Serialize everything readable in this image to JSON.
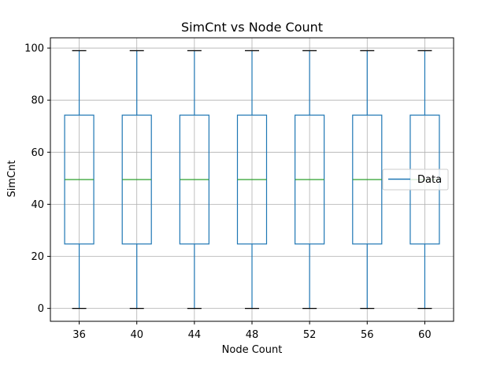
{
  "chart_data": {
    "type": "box",
    "title": "SimCnt vs Node Count",
    "xlabel": "Node Count",
    "ylabel": "SimCnt",
    "categories": [
      "36",
      "40",
      "44",
      "48",
      "52",
      "56",
      "60"
    ],
    "boxes": [
      {
        "whisker_low": 0,
        "q1": 24.75,
        "median": 49.5,
        "q3": 74.25,
        "whisker_high": 99
      },
      {
        "whisker_low": 0,
        "q1": 24.75,
        "median": 49.5,
        "q3": 74.25,
        "whisker_high": 99
      },
      {
        "whisker_low": 0,
        "q1": 24.75,
        "median": 49.5,
        "q3": 74.25,
        "whisker_high": 99
      },
      {
        "whisker_low": 0,
        "q1": 24.75,
        "median": 49.5,
        "q3": 74.25,
        "whisker_high": 99
      },
      {
        "whisker_low": 0,
        "q1": 24.75,
        "median": 49.5,
        "q3": 74.25,
        "whisker_high": 99
      },
      {
        "whisker_low": 0,
        "q1": 24.75,
        "median": 49.5,
        "q3": 74.25,
        "whisker_high": 99
      },
      {
        "whisker_low": 0,
        "q1": 24.75,
        "median": 49.5,
        "q3": 74.25,
        "whisker_high": 99
      }
    ],
    "yticks": [
      0,
      20,
      40,
      60,
      80,
      100
    ],
    "ylim": [
      -4.95,
      103.95
    ],
    "grid": true,
    "legend": {
      "entries": [
        "Data"
      ],
      "placement": "center-right"
    },
    "colors": {
      "box": "#1f77b4",
      "median": "#2ca02c",
      "cap": "#000000",
      "grid": "#b0b0b0"
    }
  }
}
